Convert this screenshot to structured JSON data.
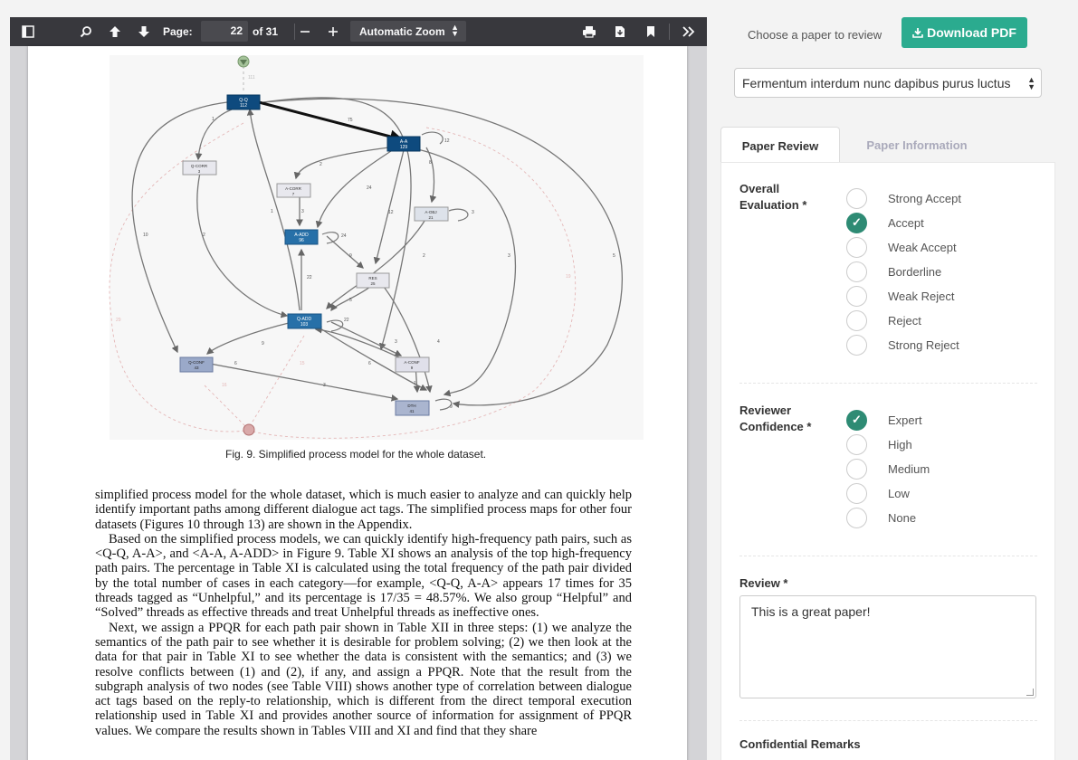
{
  "pdf_viewer": {
    "page_label": "Page:",
    "page_number": "22",
    "page_of": "of 31",
    "zoom": "Automatic Zoom",
    "figure": {
      "caption": "Fig. 9.   Simplified process model for the whole dataset.",
      "nodes": [
        {
          "id": "start",
          "label": "",
          "count": ""
        },
        {
          "id": "qq",
          "label": "Q-Q",
          "count": "112"
        },
        {
          "id": "aa",
          "label": "A-A",
          "count": "129"
        },
        {
          "id": "qcorr",
          "label": "Q-CORR",
          "count": "3"
        },
        {
          "id": "acorr",
          "label": "A-CORR",
          "count": "7"
        },
        {
          "id": "aobj",
          "label": "A-OBJ",
          "count": "21"
        },
        {
          "id": "aadd",
          "label": "A-ADD",
          "count": "96"
        },
        {
          "id": "res",
          "label": "RES",
          "count": "25"
        },
        {
          "id": "qadd",
          "label": "Q-ADD",
          "count": "103"
        },
        {
          "id": "qconf",
          "label": "Q-CONF",
          "count": "43"
        },
        {
          "id": "aconf",
          "label": "A-CONF",
          "count": "9"
        },
        {
          "id": "dth",
          "label": "DTH",
          "count": "41"
        },
        {
          "id": "end",
          "label": "",
          "count": ""
        }
      ],
      "edge_labels": [
        "111",
        "75",
        "12",
        "1",
        "2",
        "8",
        "24",
        "12",
        "3",
        "1",
        "3",
        "24",
        "10",
        "2",
        "9",
        "2",
        "3",
        "5",
        "19",
        "22",
        "5",
        "22",
        "29",
        "9",
        "6",
        "3",
        "4",
        "15",
        "6",
        "16",
        "3",
        "1",
        "9"
      ]
    },
    "paragraphs": [
      "simplified process model for the whole dataset, which is much easier to analyze and can quickly help identify important paths among different dialogue act tags. The simplified process maps for other four datasets (Figures 10 through 13) are shown in the Appendix.",
      "Based on the simplified process models, we can quickly identify high-frequency path pairs, such as <Q-Q, A-A>, and <A-A, A-ADD> in Figure 9. Table XI shows an analysis of the top high-frequency path pairs. The percentage in Table XI is calculated using the total frequency of the path pair divided by the total number of cases in each category—for example, <Q-Q, A-A> appears 17 times for 35 threads tagged as “Unhelpful,” and its percentage is 17/35 = 48.57%. We also group “Helpful” and “Solved” threads as effective threads and treat Unhelpful threads as ineffective ones.",
      "Next, we assign a PPQR for each path pair shown in Table XII in three steps: (1) we analyze the semantics of the path pair to see whether it is desirable for problem solving; (2) we then look at the data for that pair in Table XI to see whether the data is consistent with the semantics; and (3) we resolve conflicts between (1) and (2), if any, and assign a PPQR. Note that the result from the subgraph analysis of two nodes (see Table VIII) shows another type of correlation between dialogue act tags based on the reply-to relationship, which is different from the direct temporal execution relationship used in Table XI and provides another source of information for assignment of PPQR values. We compare the results shown in Tables VIII and XI and find that they share"
    ]
  },
  "sidebar": {
    "choose_label": "Choose a paper to review",
    "download_label": "Download PDF",
    "paper_selected": "Fermentum interdum nunc dapibus purus luctus",
    "tabs": [
      "Paper Review",
      "Paper Information"
    ],
    "overall_label": "Overall Evaluation *",
    "overall_options": [
      "Strong Accept",
      "Accept",
      "Weak Accept",
      "Borderline",
      "Weak Reject",
      "Reject",
      "Strong Reject"
    ],
    "overall_selected": "Accept",
    "confidence_label": "Reviewer Confidence *",
    "confidence_options": [
      "Expert",
      "High",
      "Medium",
      "Low",
      "None"
    ],
    "confidence_selected": "Expert",
    "review_label": "Review *",
    "review_text": "This is a great paper!",
    "remarks_label": "Confidential Remarks",
    "accent_color": "#2e8b74",
    "button_color": "#2bab8f"
  }
}
